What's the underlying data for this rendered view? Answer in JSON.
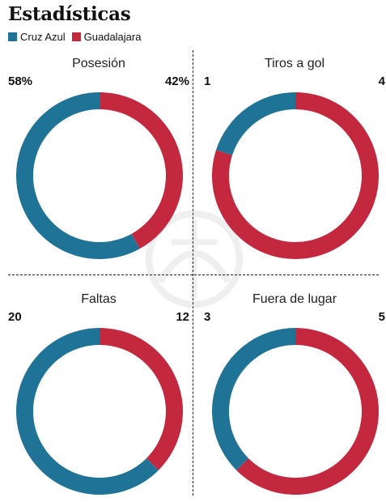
{
  "title": "Estadísticas",
  "colors": {
    "cruz_azul": "#1f7396",
    "guadalajara": "#c4283e"
  },
  "legend": [
    {
      "label": "Cruz Azul",
      "color": "#1f7396"
    },
    {
      "label": "Guadalajara",
      "color": "#c4283e"
    }
  ],
  "chart_data": [
    {
      "type": "pie",
      "title": "Posesión",
      "labels": [
        "Cruz Azul",
        "Guadalajara"
      ],
      "values": [
        58,
        42
      ],
      "display": [
        "58%",
        "42%"
      ]
    },
    {
      "type": "pie",
      "title": "Tiros a gol",
      "labels": [
        "Cruz Azul",
        "Guadalajara"
      ],
      "values": [
        1,
        4
      ],
      "display": [
        "1",
        "4"
      ]
    },
    {
      "type": "pie",
      "title": "Faltas",
      "labels": [
        "Cruz Azul",
        "Guadalajara"
      ],
      "values": [
        20,
        12
      ],
      "display": [
        "20",
        "12"
      ]
    },
    {
      "type": "pie",
      "title": "Fuera de lugar",
      "labels": [
        "Cruz Azul",
        "Guadalajara"
      ],
      "values": [
        3,
        5
      ],
      "display": [
        "3",
        "5"
      ]
    }
  ]
}
